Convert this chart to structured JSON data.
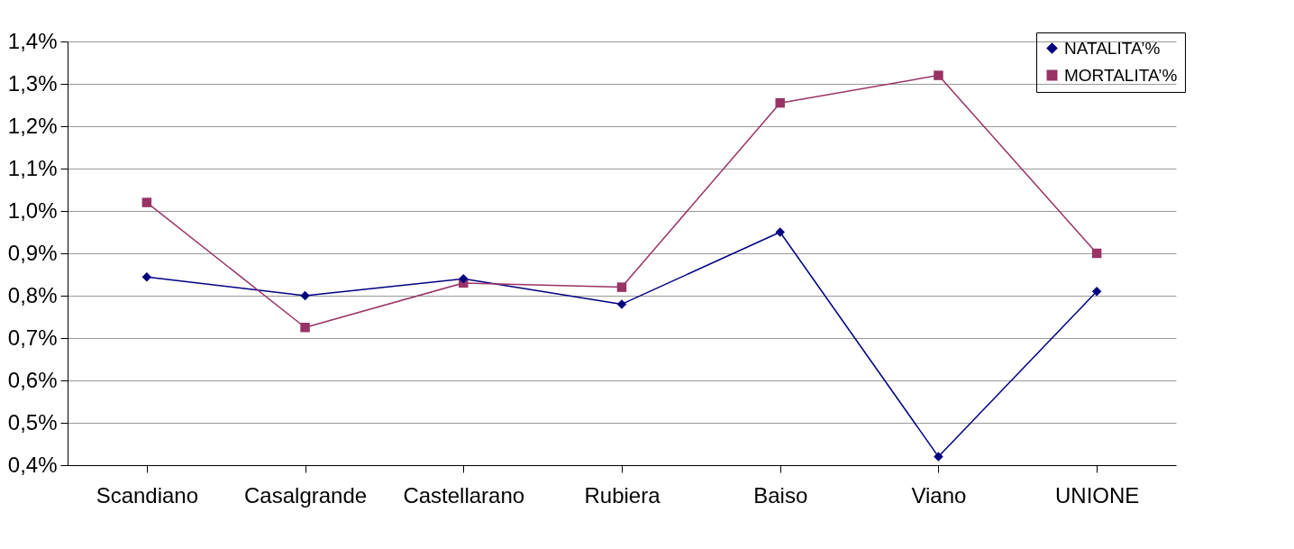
{
  "chart_data": {
    "type": "line",
    "categories": [
      "Scandiano",
      "Casalgrande",
      "Castellarano",
      "Rubiera",
      "Baiso",
      "Viano",
      "UNIONE"
    ],
    "series": [
      {
        "name": "NATALITA’%",
        "color": "#000080",
        "marker": "diamond",
        "values": [
          0.844,
          0.8,
          0.84,
          0.78,
          0.95,
          0.42,
          0.81
        ]
      },
      {
        "name": "MORTALITA’%",
        "color": "#993366",
        "marker": "square",
        "values": [
          1.02,
          0.725,
          0.83,
          0.82,
          1.255,
          1.32,
          0.9
        ]
      }
    ],
    "ylim": [
      0.4,
      1.4
    ],
    "yticks": [
      {
        "value": 0.4,
        "label": "0,4%"
      },
      {
        "value": 0.5,
        "label": "0,5%"
      },
      {
        "value": 0.6,
        "label": "0,6%"
      },
      {
        "value": 0.7,
        "label": "0,7%"
      },
      {
        "value": 0.8,
        "label": "0,8%"
      },
      {
        "value": 0.9,
        "label": "0,9%"
      },
      {
        "value": 1.0,
        "label": "1,0%"
      },
      {
        "value": 1.1,
        "label": "1,1%"
      },
      {
        "value": 1.2,
        "label": "1,2%"
      },
      {
        "value": 1.3,
        "label": "1,3%"
      },
      {
        "value": 1.4,
        "label": "1,4%"
      }
    ],
    "grid": "y",
    "legend": "top right",
    "line_style": "solid"
  }
}
